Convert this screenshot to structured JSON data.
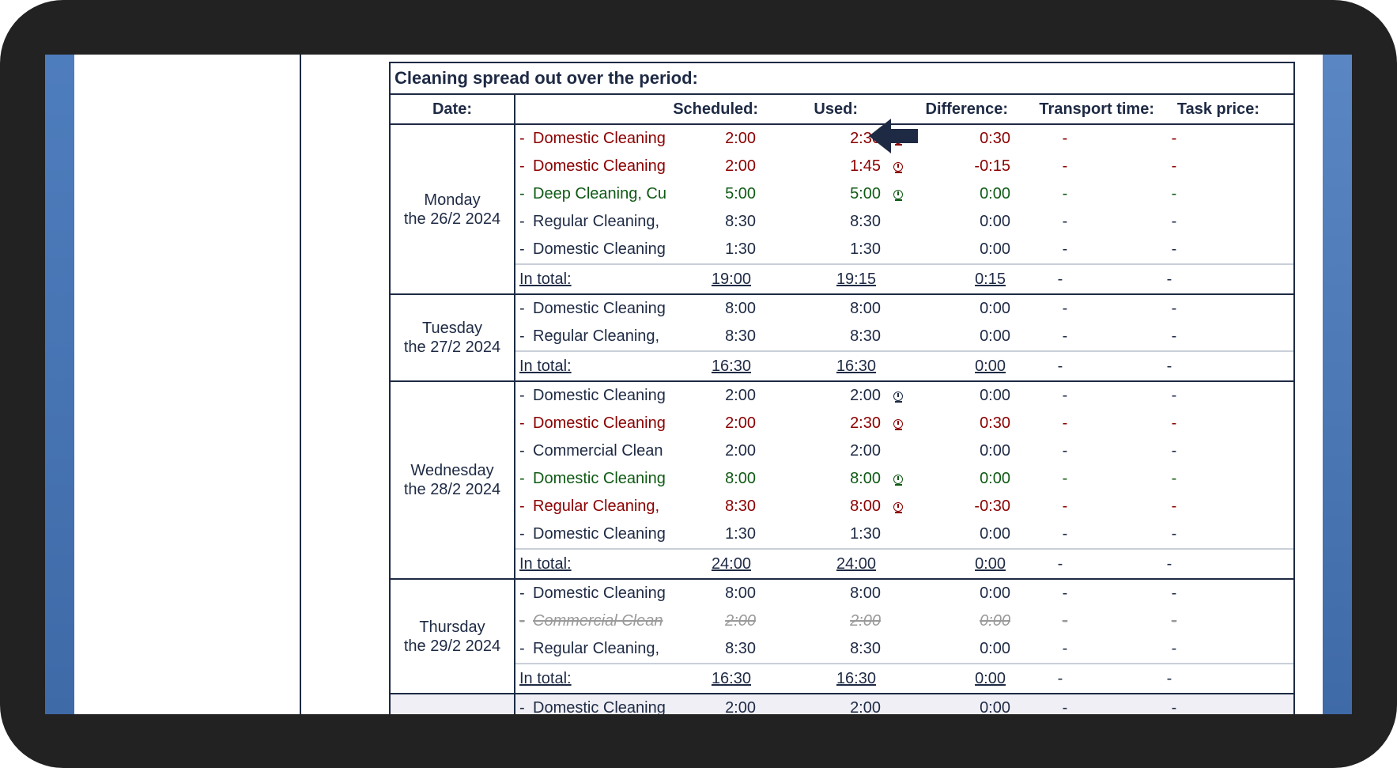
{
  "report": {
    "title": "Cleaning spread out over the period:",
    "headers": {
      "date": "Date:",
      "scheduled": "Scheduled:",
      "used": "Used:",
      "difference": "Difference:",
      "transport": "Transport time:",
      "price": "Task price:"
    },
    "days": [
      {
        "day": "Monday",
        "date": "the 26/2 2024",
        "rows": [
          {
            "task": "Domestic Cleaning",
            "scheduled": "2:00",
            "used": "2:30",
            "difference": "0:30",
            "transport": "-",
            "price": "-",
            "status": "red",
            "clock": true
          },
          {
            "task": "Domestic Cleaning",
            "scheduled": "2:00",
            "used": "1:45",
            "difference": "-0:15",
            "transport": "-",
            "price": "-",
            "status": "red",
            "clock": true
          },
          {
            "task": "Deep Cleaning, Cu",
            "scheduled": "5:00",
            "used": "5:00",
            "difference": "0:00",
            "transport": "-",
            "price": "-",
            "status": "green",
            "clock": true
          },
          {
            "task": "Regular Cleaning,",
            "scheduled": "8:30",
            "used": "8:30",
            "difference": "0:00",
            "transport": "-",
            "price": "-",
            "status": "normal",
            "clock": false
          },
          {
            "task": "Domestic Cleaning",
            "scheduled": "1:30",
            "used": "1:30",
            "difference": "0:00",
            "transport": "-",
            "price": "-",
            "status": "normal",
            "clock": false
          }
        ],
        "total": {
          "label": "In total:",
          "scheduled": "19:00",
          "used": "19:15",
          "difference": "0:15",
          "transport": "-",
          "price": "-"
        }
      },
      {
        "day": "Tuesday",
        "date": "the 27/2 2024",
        "rows": [
          {
            "task": "Domestic Cleaning",
            "scheduled": "8:00",
            "used": "8:00",
            "difference": "0:00",
            "transport": "-",
            "price": "-",
            "status": "normal",
            "clock": false
          },
          {
            "task": "Regular Cleaning,",
            "scheduled": "8:30",
            "used": "8:30",
            "difference": "0:00",
            "transport": "-",
            "price": "-",
            "status": "normal",
            "clock": false
          }
        ],
        "total": {
          "label": "In total:",
          "scheduled": "16:30",
          "used": "16:30",
          "difference": "0:00",
          "transport": "-",
          "price": "-"
        }
      },
      {
        "day": "Wednesday",
        "date": "the 28/2 2024",
        "rows": [
          {
            "task": "Domestic Cleaning",
            "scheduled": "2:00",
            "used": "2:00",
            "difference": "0:00",
            "transport": "-",
            "price": "-",
            "status": "normal",
            "clock": true
          },
          {
            "task": "Domestic Cleaning",
            "scheduled": "2:00",
            "used": "2:30",
            "difference": "0:30",
            "transport": "-",
            "price": "-",
            "status": "red",
            "clock": true
          },
          {
            "task": "Commercial Clean",
            "scheduled": "2:00",
            "used": "2:00",
            "difference": "0:00",
            "transport": "-",
            "price": "-",
            "status": "normal",
            "clock": false
          },
          {
            "task": "Domestic Cleaning",
            "scheduled": "8:00",
            "used": "8:00",
            "difference": "0:00",
            "transport": "-",
            "price": "-",
            "status": "green",
            "clock": true
          },
          {
            "task": "Regular Cleaning,",
            "scheduled": "8:30",
            "used": "8:00",
            "difference": "-0:30",
            "transport": "-",
            "price": "-",
            "status": "red",
            "clock": true
          },
          {
            "task": "Domestic Cleaning",
            "scheduled": "1:30",
            "used": "1:30",
            "difference": "0:00",
            "transport": "-",
            "price": "-",
            "status": "normal",
            "clock": false
          }
        ],
        "total": {
          "label": "In total:",
          "scheduled": "24:00",
          "used": "24:00",
          "difference": "0:00",
          "transport": "-",
          "price": "-"
        }
      },
      {
        "day": "Thursday",
        "date": "the 29/2 2024",
        "rows": [
          {
            "task": "Domestic Cleaning",
            "scheduled": "8:00",
            "used": "8:00",
            "difference": "0:00",
            "transport": "-",
            "price": "-",
            "status": "normal",
            "clock": false
          },
          {
            "task": "Commercial Clean",
            "scheduled": "2:00",
            "used": "2:00",
            "difference": "0:00",
            "transport": "-",
            "price": "-",
            "status": "struck",
            "clock": false
          },
          {
            "task": "Regular Cleaning,",
            "scheduled": "8:30",
            "used": "8:30",
            "difference": "0:00",
            "transport": "-",
            "price": "-",
            "status": "normal",
            "clock": false
          }
        ],
        "total": {
          "label": "In total:",
          "scheduled": "16:30",
          "used": "16:30",
          "difference": "0:00",
          "transport": "-",
          "price": "-"
        }
      },
      {
        "day": "",
        "date": "",
        "rows": [
          {
            "task": "Domestic Cleaning",
            "scheduled": "2:00",
            "used": "2:00",
            "difference": "0:00",
            "transport": "-",
            "price": "-",
            "status": "normal",
            "clock": false
          }
        ]
      }
    ]
  },
  "icons": {
    "clock": "clock-icon",
    "arrow": "arrow-left-icon"
  },
  "colors": {
    "frame": "#222222",
    "border": "#1e2a44",
    "red": "#8b0000",
    "green": "#0f5a14",
    "muted": "#9a9a9a",
    "sidebar": "#4a78b5"
  }
}
